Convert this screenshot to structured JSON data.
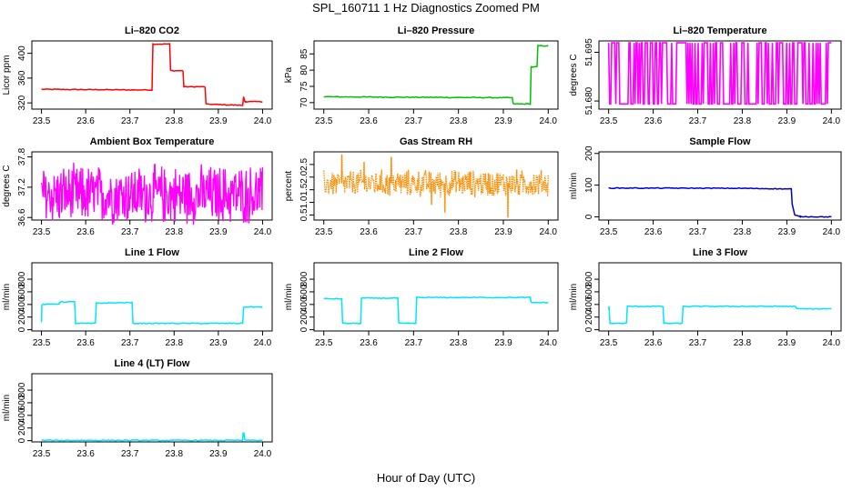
{
  "page": {
    "title": "SPL_160711  1 Hz Diagnostics Zoomed PM",
    "xlabel": "Hour of Day (UTC)"
  },
  "chart_data": [
    {
      "type": "line",
      "title": "Li–820 CO2",
      "xlabel": "",
      "ylabel": "Licor ppm",
      "color": "#ff0000",
      "xlim": [
        23.5,
        24.0
      ],
      "ylim": [
        310,
        420
      ],
      "xticks": [
        "23.5",
        "23.6",
        "23.7",
        "23.8",
        "23.9",
        "24.0"
      ],
      "yticks": [
        "320",
        "360",
        "400"
      ],
      "series": [
        {
          "x": [
            23.5,
            23.705,
            23.708,
            23.75,
            23.752,
            23.79,
            23.792,
            23.82,
            23.822,
            23.87,
            23.872,
            23.955,
            23.957,
            23.96,
            23.962,
            24.0
          ],
          "y": [
            342,
            341,
            341,
            341,
            415,
            415,
            372,
            372,
            346,
            346,
            318,
            316,
            330,
            322,
            322,
            322
          ]
        }
      ]
    },
    {
      "type": "line",
      "title": "Li–820 Pressure",
      "xlabel": "",
      "ylabel": "kPa",
      "color": "#00c000",
      "xlim": [
        23.5,
        24.0
      ],
      "ylim": [
        68,
        89
      ],
      "xticks": [
        "23.5",
        "23.6",
        "23.7",
        "23.8",
        "23.9",
        "24.0"
      ],
      "yticks": [
        "70",
        "75",
        "80",
        "85"
      ],
      "series": [
        {
          "x": [
            23.5,
            23.92,
            23.922,
            23.96,
            23.962,
            23.975,
            23.977,
            24.0
          ],
          "y": [
            71.8,
            71.5,
            69.6,
            69.6,
            81,
            81,
            87.5,
            87.5
          ]
        }
      ]
    },
    {
      "type": "line",
      "title": "Li–820 Temperature",
      "xlabel": "",
      "ylabel": "degrees C",
      "color": "#ff00ff",
      "xlim": [
        23.5,
        24.0
      ],
      "ylim": [
        51.6775,
        51.6985
      ],
      "xticks": [
        "23.5",
        "23.6",
        "23.7",
        "23.8",
        "23.9",
        "24.0"
      ],
      "yticks": [
        "51.680",
        "51.695"
      ],
      "series": [
        {
          "pattern": "two-level-noise",
          "low": 51.6791,
          "high": 51.6979,
          "n": 220
        }
      ]
    },
    {
      "type": "line",
      "title": "Ambient Box Temperature",
      "xlabel": "",
      "ylabel": "degrees C",
      "color": "#ff00ff",
      "xlim": [
        23.5,
        24.0
      ],
      "ylim": [
        36.55,
        37.9
      ],
      "xticks": [
        "23.5",
        "23.6",
        "23.7",
        "23.8",
        "23.9",
        "24.0"
      ],
      "yticks": [
        "36.6",
        "37.2",
        "37.8"
      ],
      "series": [
        {
          "pattern": "noise",
          "low": 36.6,
          "high": 37.8,
          "center": 37.05,
          "n": 420
        }
      ]
    },
    {
      "type": "line",
      "title": "Gas Stream RH",
      "xlabel": "",
      "ylabel": "percent",
      "color": "#ff8c00",
      "xlim": [
        23.5,
        24.0
      ],
      "ylim": [
        0.3,
        3.0
      ],
      "xticks": [
        "23.5",
        "23.6",
        "23.7",
        "23.8",
        "23.9",
        "24.0"
      ],
      "yticks": [
        "0.5",
        "1.0",
        "1.5",
        "2.0",
        "2.5"
      ],
      "series": [
        {
          "pattern": "noise",
          "low": 1.2,
          "high": 2.3,
          "center": 1.75,
          "n": 420,
          "spikes": [
            [
              23.54,
              2.9
            ],
            [
              23.59,
              2.6
            ],
            [
              23.65,
              2.8
            ],
            [
              23.74,
              0.9
            ],
            [
              23.77,
              0.6
            ],
            [
              23.91,
              0.4
            ],
            [
              23.93,
              2.3
            ]
          ]
        }
      ]
    },
    {
      "type": "line",
      "title": "Sample Flow",
      "xlabel": "",
      "ylabel": "ml/min",
      "color": "#0000d0",
      "xlim": [
        23.5,
        24.0
      ],
      "ylim": [
        -10,
        205
      ],
      "xticks": [
        "23.5",
        "23.6",
        "23.7",
        "23.8",
        "23.9",
        "24.0"
      ],
      "yticks": [
        "0",
        "100",
        "200"
      ],
      "series": [
        {
          "x": [
            23.5,
            23.8,
            23.91,
            23.912,
            23.918,
            23.93,
            24.0
          ],
          "y": [
            91,
            90,
            88,
            40,
            5,
            1,
            0
          ]
        }
      ]
    },
    {
      "type": "line",
      "title": "Line 1 Flow",
      "xlabel": "",
      "ylabel": "ml/min",
      "color": "#00e5ff",
      "xlim": [
        23.5,
        24.0
      ],
      "ylim": [
        -20,
        1060
      ],
      "xticks": [
        "23.5",
        "23.6",
        "23.7",
        "23.8",
        "23.9",
        "24.0"
      ],
      "yticks": [
        "0",
        "200",
        "400",
        "600",
        "800"
      ],
      "series": [
        {
          "x": [
            23.5,
            23.501,
            23.504,
            23.54,
            23.542,
            23.575,
            23.577,
            23.622,
            23.624,
            23.705,
            23.707,
            23.955,
            23.957,
            24.0
          ],
          "y": [
            120,
            390,
            400,
            410,
            440,
            440,
            100,
            100,
            420,
            430,
            100,
            100,
            360,
            360
          ]
        }
      ]
    },
    {
      "type": "line",
      "title": "Line 2 Flow",
      "xlabel": "",
      "ylabel": "ml/min",
      "color": "#00e5ff",
      "xlim": [
        23.5,
        24.0
      ],
      "ylim": [
        -20,
        1060
      ],
      "xticks": [
        "23.5",
        "23.6",
        "23.7",
        "23.8",
        "23.9",
        "24.0"
      ],
      "yticks": [
        "0",
        "200",
        "400",
        "600",
        "800"
      ],
      "series": [
        {
          "x": [
            23.5,
            23.54,
            23.542,
            23.582,
            23.584,
            23.665,
            23.667,
            23.705,
            23.707,
            23.96,
            23.962,
            24.0
          ],
          "y": [
            490,
            490,
            100,
            100,
            500,
            500,
            100,
            100,
            510,
            510,
            430,
            430
          ]
        }
      ]
    },
    {
      "type": "line",
      "title": "Line 3 Flow",
      "xlabel": "",
      "ylabel": "ml/min",
      "color": "#00e5ff",
      "xlim": [
        23.5,
        24.0
      ],
      "ylim": [
        -20,
        1060
      ],
      "xticks": [
        "23.5",
        "23.6",
        "23.7",
        "23.8",
        "23.9",
        "24.0"
      ],
      "yticks": [
        "0",
        "200",
        "400",
        "600",
        "800"
      ],
      "series": [
        {
          "x": [
            23.5,
            23.501,
            23.503,
            23.54,
            23.542,
            23.622,
            23.624,
            23.665,
            23.667,
            23.92,
            23.922,
            24.0
          ],
          "y": [
            320,
            370,
            100,
            100,
            370,
            370,
            100,
            100,
            370,
            370,
            330,
            330
          ]
        }
      ]
    },
    {
      "type": "line",
      "title": "Line 4 (LT) Flow",
      "xlabel": "",
      "ylabel": "ml/min",
      "color": "#00e5ff",
      "xlim": [
        23.5,
        24.0
      ],
      "ylim": [
        -20,
        1060
      ],
      "xticks": [
        "23.5",
        "23.6",
        "23.7",
        "23.8",
        "23.9",
        "24.0"
      ],
      "yticks": [
        "0",
        "200",
        "400",
        "600",
        "800"
      ],
      "series": [
        {
          "x": [
            23.5,
            23.955,
            23.956,
            23.958,
            23.96,
            24.0
          ],
          "y": [
            5,
            5,
            120,
            120,
            5,
            5
          ]
        }
      ]
    }
  ]
}
